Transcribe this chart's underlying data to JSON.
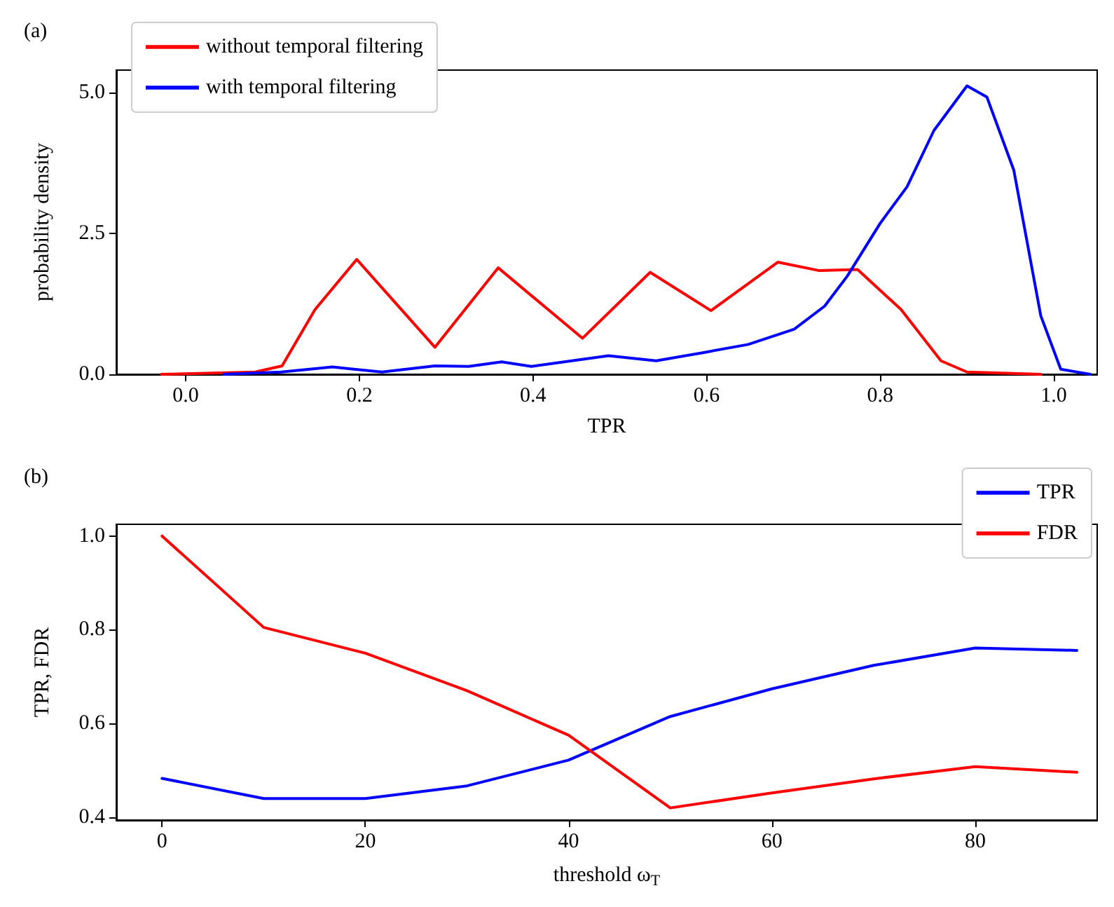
{
  "chart_data": [
    {
      "type": "line",
      "title": "(a)",
      "xlabel": "TPR",
      "ylabel": "probability density",
      "legend": "top left",
      "grid": false,
      "marker": "none",
      "line_style": "solid",
      "xlim": [
        -0.08,
        1.05
      ],
      "ylim": [
        0,
        5.4
      ],
      "xticks": [
        {
          "value": 0,
          "label": "0.0"
        },
        0.2,
        0.4,
        0.6,
        0.8,
        {
          "value": 1,
          "label": "1.0"
        }
      ],
      "yticks": [
        {
          "value": 0,
          "label": "0.0"
        },
        2.5,
        {
          "value": 5,
          "label": "5.0"
        }
      ],
      "series": [
        {
          "name": "without temporal filtering",
          "color": "#ff0000",
          "x": [
            -0.028,
            0.08,
            0.111,
            0.149,
            0.197,
            0.287,
            0.36,
            0.457,
            0.535,
            0.605,
            0.682,
            0.73,
            0.774,
            0.824,
            0.87,
            0.9,
            0.985
          ],
          "values": [
            0,
            0.04,
            0.15,
            1.15,
            2.04,
            0.48,
            1.89,
            0.64,
            1.81,
            1.13,
            1.99,
            1.84,
            1.86,
            1.15,
            0.24,
            0.04,
            0
          ]
        },
        {
          "name": "with temporal filtering",
          "color": "#0000ff",
          "x": [
            0.044,
            0.11,
            0.169,
            0.226,
            0.287,
            0.326,
            0.364,
            0.398,
            0.487,
            0.542,
            0.598,
            0.648,
            0.701,
            0.736,
            0.762,
            0.8,
            0.831,
            0.862,
            0.9,
            0.923,
            0.954,
            0.985,
            1.008,
            1.042
          ],
          "values": [
            0,
            0.04,
            0.13,
            0.04,
            0.15,
            0.14,
            0.22,
            0.14,
            0.33,
            0.24,
            0.39,
            0.53,
            0.8,
            1.21,
            1.74,
            2.68,
            3.33,
            4.33,
            5.12,
            4.92,
            3.62,
            1.04,
            0.09,
            0
          ]
        }
      ]
    },
    {
      "type": "line",
      "title": "(b)",
      "xlabel": "threshold ω$_{T}$",
      "ylabel": "TPR, FDR",
      "legend": "top right",
      "grid": false,
      "marker": "none",
      "line_style": "solid",
      "xlim": [
        -4.5,
        92
      ],
      "ylim": [
        0.394,
        1.025
      ],
      "xticks": [
        0,
        20,
        40,
        60,
        80
      ],
      "yticks": [
        0.4,
        0.6,
        0.8,
        {
          "value": 1,
          "label": "1.0"
        }
      ],
      "x": [
        0,
        10,
        20,
        30,
        40,
        50,
        60,
        70,
        80,
        90
      ],
      "series": [
        {
          "name": "TPR",
          "color": "#0000ff",
          "values": [
            0.483,
            0.44,
            0.44,
            0.467,
            0.522,
            0.615,
            0.674,
            0.724,
            0.761,
            0.756
          ]
        },
        {
          "name": "FDR",
          "color": "#ff0000",
          "values": [
            1.0,
            0.805,
            0.75,
            0.67,
            0.575,
            0.42,
            0.452,
            0.482,
            0.508,
            0.496
          ]
        }
      ]
    }
  ]
}
